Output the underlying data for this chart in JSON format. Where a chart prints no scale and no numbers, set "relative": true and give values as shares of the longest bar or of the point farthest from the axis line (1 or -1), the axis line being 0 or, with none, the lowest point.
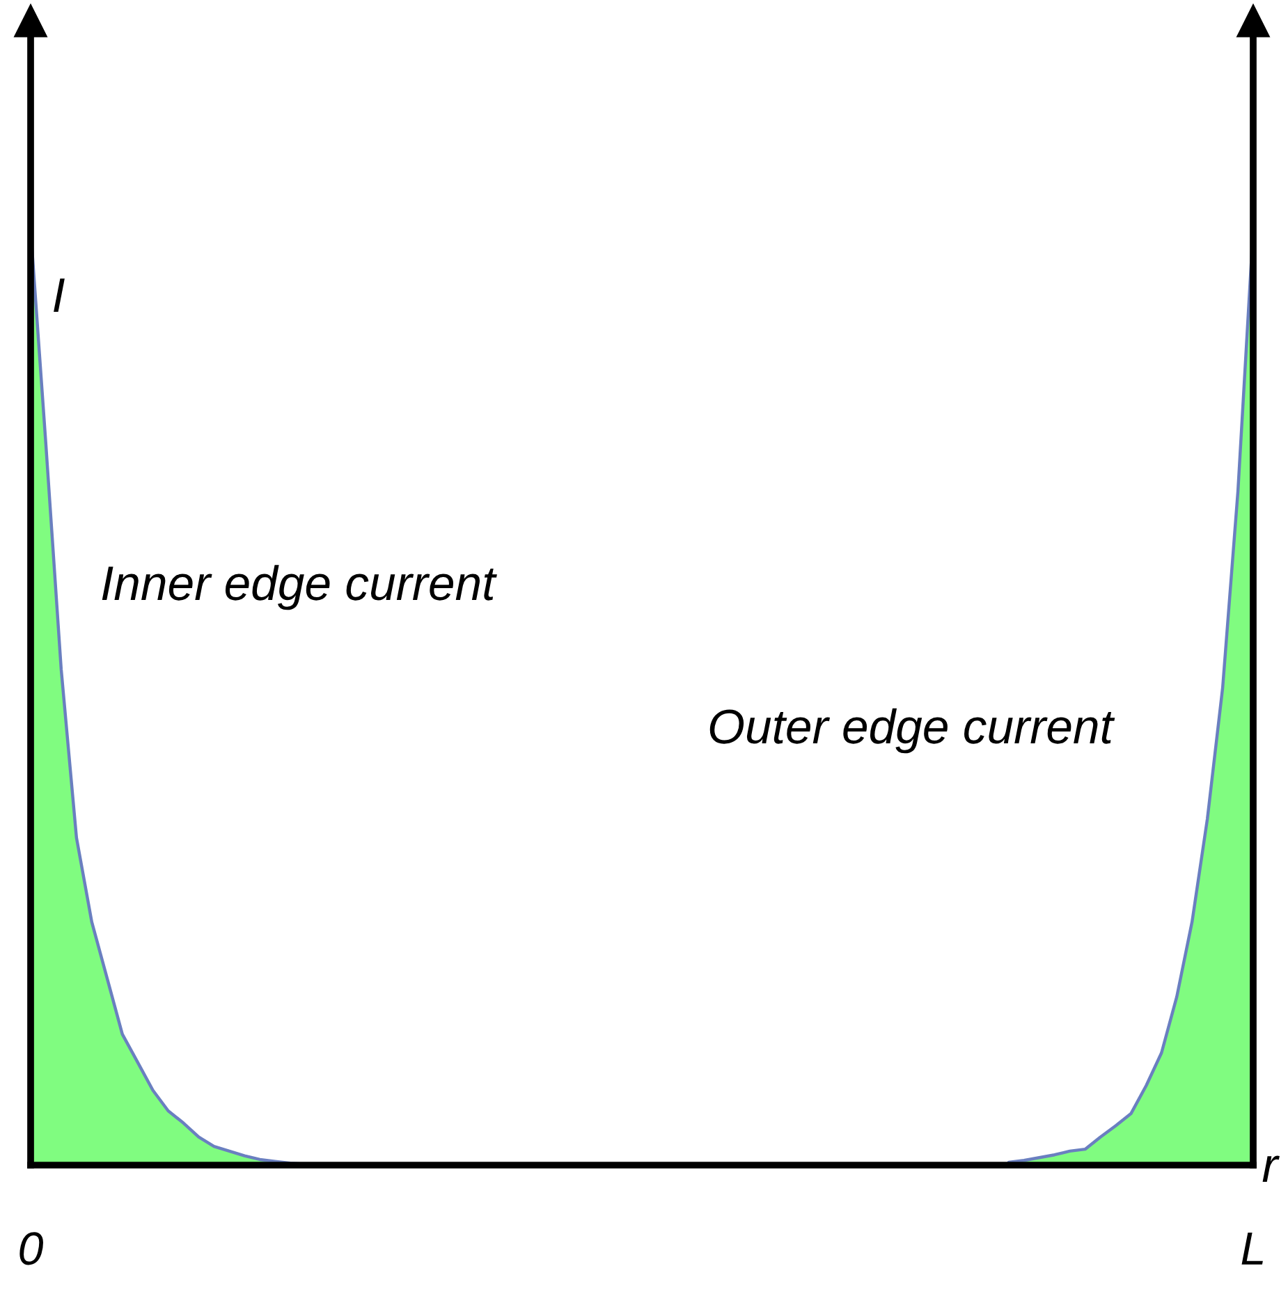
{
  "chart_data": {
    "type": "area",
    "relative": true,
    "xlabel": "r",
    "ylabel": "I",
    "legend": false,
    "categories": [
      "0",
      null,
      null,
      null,
      null,
      null,
      null,
      null,
      null,
      null,
      null,
      null,
      null,
      null,
      null,
      null,
      null,
      null,
      null,
      null,
      null,
      null,
      null,
      null,
      null,
      null,
      null,
      null,
      null,
      null,
      null,
      null,
      null,
      null,
      null,
      null,
      null,
      null,
      null,
      null,
      null,
      null,
      null,
      null,
      null,
      null,
      null,
      null,
      null,
      null,
      null,
      null,
      null,
      null,
      null,
      null,
      null,
      null,
      null,
      null,
      null,
      null,
      null,
      null,
      null,
      null,
      null,
      null,
      null,
      null,
      null,
      null,
      null,
      null,
      null,
      null,
      null,
      null,
      null,
      null,
      "L"
    ],
    "series": [
      {
        "name": "Inner edge current",
        "color": "#80fc80",
        "values": [
          1,
          0.77,
          0.53,
          0.35,
          0.26,
          0.2,
          0.14,
          0.11,
          0.08,
          0.058,
          0.045,
          0.03,
          0.02,
          0.015,
          0.01,
          0.006,
          0.004,
          0.002,
          0.001,
          0,
          null,
          null,
          null,
          null,
          null,
          null,
          null,
          null,
          null,
          null,
          null,
          null,
          null,
          null,
          null,
          null,
          null,
          null,
          null,
          null,
          null,
          null,
          null,
          null,
          null,
          null,
          null,
          null,
          null,
          null,
          null,
          null,
          null,
          null,
          null,
          null,
          null,
          null,
          null,
          null,
          null,
          null,
          null,
          null,
          null,
          null,
          null,
          null,
          null,
          null,
          null,
          null,
          null,
          null,
          null,
          null,
          null,
          null,
          null,
          null,
          null
        ]
      },
      {
        "name": "Outer edge current",
        "color": "#80fc80",
        "values": [
          null,
          null,
          null,
          null,
          null,
          null,
          null,
          null,
          null,
          null,
          null,
          null,
          null,
          null,
          null,
          null,
          null,
          null,
          null,
          null,
          null,
          null,
          null,
          null,
          null,
          null,
          null,
          null,
          null,
          null,
          null,
          null,
          null,
          null,
          null,
          null,
          null,
          null,
          null,
          null,
          null,
          null,
          null,
          null,
          null,
          null,
          null,
          null,
          null,
          null,
          null,
          null,
          null,
          null,
          null,
          null,
          null,
          null,
          null,
          null,
          null,
          null,
          null,
          null,
          0.003,
          0.005,
          0.008,
          0.011,
          0.015,
          0.017,
          0.03,
          0.042,
          0.055,
          0.085,
          0.12,
          0.18,
          0.26,
          0.37,
          0.51,
          0.72,
          1
        ]
      }
    ]
  }
}
